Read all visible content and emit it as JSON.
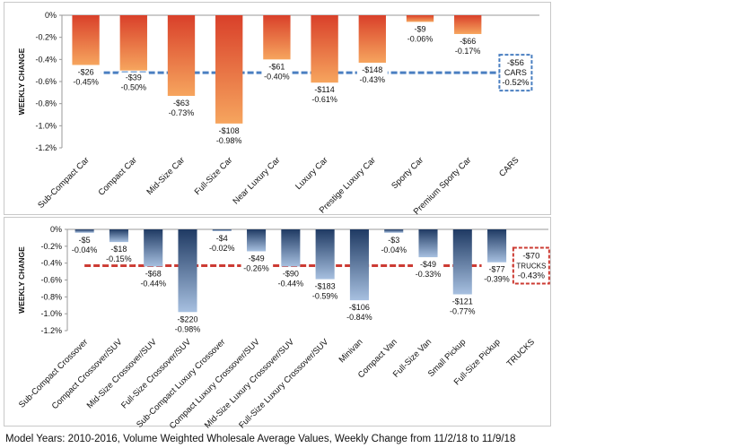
{
  "colors": {
    "cars_bar_top": "#d9402a",
    "cars_bar_bottom": "#f6a55e",
    "cars_avg_line": "#4a7fc1",
    "trucks_bar_top": "#1f3a63",
    "trucks_bar_bottom": "#a7c0e0",
    "trucks_avg_line": "#cc3b33",
    "axis": "#999999",
    "text": "#111111"
  },
  "chart_data": [
    {
      "type": "bar",
      "ylabel": "WEEKLY CHANGE",
      "ylim": [
        -1.2,
        0
      ],
      "yticks": [
        "0%",
        "-0.2%",
        "-0.4%",
        "-0.6%",
        "-0.8%",
        "-1.0%",
        "-1.2%"
      ],
      "categories": [
        "Sub-Compact Car",
        "Compact Car",
        "Mid-Size Car",
        "Full-Size Car",
        "Near Luxury Car",
        "Luxury Car",
        "Prestige Luxury Car",
        "Sporty Car",
        "Premium Sporty Car",
        "CARS"
      ],
      "values": [
        -0.45,
        -0.5,
        -0.73,
        -0.98,
        -0.4,
        -0.61,
        -0.43,
        -0.06,
        -0.17,
        null
      ],
      "dollar_labels": [
        "-$26",
        "-$39",
        "-$63",
        "-$108",
        "-$61",
        "-$114",
        "-$148",
        "-$9",
        "-$66"
      ],
      "pct_labels": [
        "-0.45%",
        "-0.50%",
        "-0.73%",
        "-0.98%",
        "-0.40%",
        "-0.61%",
        "-0.43%",
        "-0.06%",
        "-0.17%"
      ],
      "average": {
        "value": -0.52,
        "dollar": "-$56",
        "name": "CARS",
        "pct": "-0.52%"
      }
    },
    {
      "type": "bar",
      "ylabel": "WEEKLY CHANGE",
      "ylim": [
        -1.2,
        0
      ],
      "yticks": [
        "0%",
        "-0.2%",
        "-0.4%",
        "-0.6%",
        "-0.8%",
        "-1.0%",
        "-1.2%"
      ],
      "categories": [
        "Sub-Compact Crossover",
        "Compact Crossover/SUV",
        "Mid-Size Crossover/SUV",
        "Full-Size Crossover/SUV",
        "Sub-Compact Luxury Crossover",
        "Compact Luxury Crossover/SUV",
        "Mid-Size Luxury Crossover/SUV",
        "Full-Size Luxury Crossover/SUV",
        "Minivan",
        "Compact Van",
        "Full-Size Van",
        "Small Pickup",
        "Full-Size Pickup",
        "TRUCKS"
      ],
      "values": [
        -0.04,
        -0.15,
        -0.44,
        -0.98,
        -0.02,
        -0.26,
        -0.44,
        -0.59,
        -0.84,
        -0.04,
        -0.33,
        -0.77,
        -0.39,
        null
      ],
      "dollar_labels": [
        "-$5",
        "-$18",
        "-$68",
        "-$220",
        "-$4",
        "-$49",
        "-$90",
        "-$183",
        "-$106",
        "-$3",
        "-$49",
        "-$121",
        "-$77"
      ],
      "pct_labels": [
        "-0.04%",
        "-0.15%",
        "-0.44%",
        "-0.98%",
        "-0.02%",
        "-0.26%",
        "-0.44%",
        "-0.59%",
        "-0.84%",
        "-0.04%",
        "-0.33%",
        "-0.77%",
        "-0.39%"
      ],
      "average": {
        "value": -0.43,
        "dollar": "-$70",
        "name": "TRUCKS",
        "pct": "-0.43%"
      }
    }
  ],
  "footer": "Model Years: 2010-2016, Volume Weighted Wholesale Average Values, Weekly Change from 11/2/18 to 11/9/18"
}
